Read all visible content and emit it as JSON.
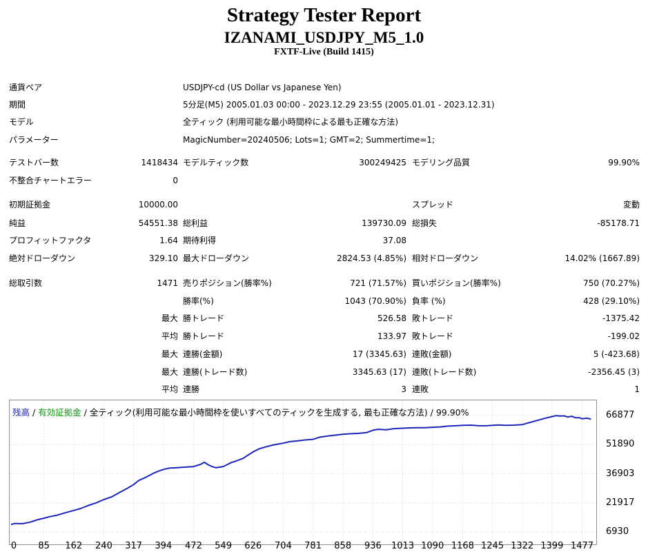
{
  "header": {
    "title": "Strategy Tester Report",
    "subtitle": "IZANAMI_USDJPY_M5_1.0",
    "build": "FXTF-Live (Build 1415)"
  },
  "info": {
    "pair_label": "通貨ペア",
    "pair_value": "USDJPY-cd (US Dollar vs Japanese Yen)",
    "period_label": "期間",
    "period_value": "5分足(M5) 2005.01.03 00:00 - 2023.12.29 23:55 (2005.01.01 - 2023.12.31)",
    "model_label": "モデル",
    "model_value": "全ティック (利用可能な最小時間枠による最も正確な方法)",
    "params_label": "パラメーター",
    "params_value": "MagicNumber=20240506; Lots=1; GMT=2; Summertime=1;"
  },
  "stats": {
    "bars_label": "テストバー数",
    "bars_value": "1418434",
    "ticks_label": "モデルティック数",
    "ticks_value": "300249425",
    "quality_label": "モデリング品質",
    "quality_value": "99.90%",
    "mismatch_label": "不整合チャートエラー",
    "mismatch_value": "0",
    "deposit_label": "初期証拠金",
    "deposit_value": "10000.00",
    "spread_label": "スプレッド",
    "spread_value": "変動",
    "net_label": "純益",
    "net_value": "54551.38",
    "gross_profit_label": "総利益",
    "gross_profit_value": "139730.09",
    "gross_loss_label": "総損失",
    "gross_loss_value": "-85178.71",
    "pf_label": "プロフィットファクタ",
    "pf_value": "1.64",
    "expected_label": "期待利得",
    "expected_value": "37.08",
    "abs_dd_label": "絶対ドローダウン",
    "abs_dd_value": "329.10",
    "max_dd_label": "最大ドローダウン",
    "max_dd_value": "2824.53 (4.85%)",
    "rel_dd_label": "相対ドローダウン",
    "rel_dd_value": "14.02% (1667.89)",
    "total_label": "総取引数",
    "total_value": "1471",
    "short_label": "売りポジション(勝率%)",
    "short_value": "721 (71.57%)",
    "long_label": "買いポジション(勝率%)",
    "long_value": "750 (70.27%)",
    "winrate_label": "勝率(%)",
    "winrate_value": "1043 (70.90%)",
    "lossrate_label": "負率 (%)",
    "lossrate_value": "428 (29.10%)",
    "max_prefix": "最大",
    "avg_prefix": "平均",
    "win_trade_label": "勝トレード",
    "loss_trade_label": "敗トレード",
    "max_win_value": "526.58",
    "max_loss_value": "-1375.42",
    "avg_win_value": "133.97",
    "avg_loss_value": "-199.02",
    "cons_win_amt_label": "連勝(金額)",
    "cons_win_amt_value": "17 (3345.63)",
    "cons_loss_amt_label": "連敗(金額)",
    "cons_loss_amt_value": "5 (-423.68)",
    "cons_win_cnt_label": "連勝(トレード数)",
    "cons_win_cnt_value": "3345.63 (17)",
    "cons_loss_cnt_label": "連敗(トレード数)",
    "cons_loss_cnt_value": "-2356.45 (3)",
    "avg_cons_win_label": "連勝",
    "avg_cons_win_value": "3",
    "avg_cons_loss_label": "連敗",
    "avg_cons_loss_value": "1"
  },
  "legend": {
    "balance": "残高",
    "sep1": " / ",
    "equity": "有効証拠金",
    "rest": " / 全ティック(利用可能な最小時間枠を使いすべてのティックを生成する, 最も正確な方法) / 99.90%"
  },
  "chart_data": {
    "type": "line",
    "x_ticks": [
      "0",
      "85",
      "162",
      "240",
      "317",
      "394",
      "472",
      "549",
      "626",
      "704",
      "781",
      "858",
      "936",
      "1013",
      "1090",
      "1168",
      "1245",
      "1322",
      "1399",
      "1477"
    ],
    "y_ticks": [
      "66877",
      "51890",
      "36903",
      "21917",
      "6930"
    ],
    "x_range": [
      0,
      1510
    ],
    "y_range": [
      6930,
      66877
    ],
    "line_color": "#1b24b8",
    "series": [
      {
        "x": [
          0,
          10,
          30,
          50,
          70,
          85,
          100,
          120,
          140,
          162,
          180,
          200,
          220,
          240,
          260,
          280,
          300,
          317,
          330,
          350,
          370,
          380,
          394,
          410,
          430,
          450,
          460,
          472,
          480,
          490,
          500,
          510,
          520,
          530,
          549,
          560,
          570,
          580,
          600,
          626,
          640,
          660,
          680,
          704,
          720,
          740,
          760,
          781,
          800,
          820,
          840,
          858,
          880,
          900,
          920,
          936,
          950,
          970,
          990,
          1013,
          1030,
          1050,
          1070,
          1090,
          1110,
          1130,
          1150,
          1168,
          1190,
          1210,
          1230,
          1245,
          1260,
          1280,
          1300,
          1322,
          1340,
          1360,
          1380,
          1399,
          1410,
          1420,
          1430,
          1440,
          1450,
          1460,
          1470,
          1477,
          1490,
          1500
        ],
        "y": [
          10800,
          11300,
          11200,
          12000,
          13300,
          14000,
          14800,
          15600,
          16800,
          18000,
          19000,
          20600,
          21900,
          23600,
          25000,
          27200,
          29300,
          31300,
          33400,
          35200,
          37300,
          38100,
          39100,
          39800,
          40000,
          40300,
          40400,
          40600,
          41100,
          41700,
          42800,
          41500,
          40600,
          40000,
          40600,
          41700,
          42700,
          43300,
          44800,
          48100,
          49600,
          50800,
          51800,
          52600,
          53400,
          53800,
          54300,
          54600,
          55800,
          56300,
          56800,
          57200,
          57500,
          57700,
          58100,
          59300,
          59800,
          59500,
          60100,
          60300,
          60500,
          60600,
          60600,
          60800,
          61000,
          61400,
          61600,
          61800,
          61900,
          61600,
          61600,
          61800,
          62000,
          61800,
          61900,
          62200,
          63200,
          64300,
          65400,
          66300,
          66800,
          66600,
          66700,
          66100,
          66500,
          65700,
          65700,
          65200,
          65500,
          65000
        ]
      }
    ]
  }
}
